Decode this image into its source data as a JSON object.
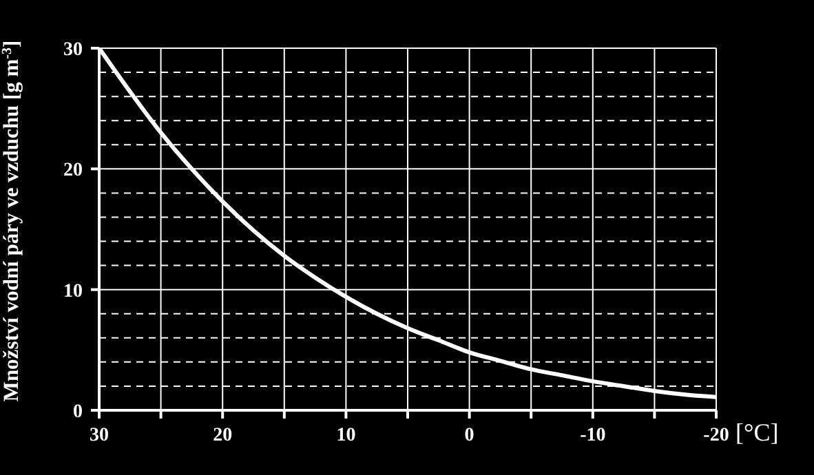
{
  "chart_data": {
    "type": "line",
    "xlabel": "[°C]",
    "ylabel": "Množství vodní páry ve vzduchu [g m$^{-3}$]",
    "x": [
      30,
      27.5,
      25,
      22.5,
      20,
      17.5,
      15,
      12.5,
      10,
      7.5,
      5,
      2.5,
      0,
      -2.5,
      -5,
      -7.5,
      -10,
      -12.5,
      -15,
      -17.5,
      -20
    ],
    "series": [
      {
        "color": "#ffffff",
        "values": [
          30.0,
          26.4,
          23.0,
          20.0,
          17.3,
          14.9,
          12.8,
          11.0,
          9.4,
          8.0,
          6.8,
          5.8,
          4.8,
          4.1,
          3.4,
          2.9,
          2.4,
          2.0,
          1.6,
          1.3,
          1.1
        ]
      }
    ],
    "xlim": [
      30,
      -20
    ],
    "ylim": [
      0,
      30
    ],
    "xticks": [
      30,
      {
        "value": 25,
        "label": null
      },
      20,
      {
        "value": 15,
        "label": null
      },
      10,
      {
        "value": 5,
        "label": null
      },
      0,
      {
        "value": -5,
        "label": null
      },
      -10,
      {
        "value": -15,
        "label": null
      },
      -20
    ],
    "yticks": [
      0,
      {
        "value": 2,
        "label": null
      },
      {
        "value": 4,
        "label": null
      },
      {
        "value": 6,
        "label": null
      },
      {
        "value": 8,
        "label": null
      },
      10,
      {
        "value": 12,
        "label": null
      },
      {
        "value": 14,
        "label": null
      },
      {
        "value": 16,
        "label": null
      },
      {
        "value": 18,
        "label": null
      },
      20,
      {
        "value": 22,
        "label": null
      },
      {
        "value": 24,
        "label": null
      },
      {
        "value": 26,
        "label": null
      },
      {
        "value": 28,
        "label": null
      },
      30
    ],
    "grid": true,
    "marker": "none",
    "line_style": "solid"
  }
}
